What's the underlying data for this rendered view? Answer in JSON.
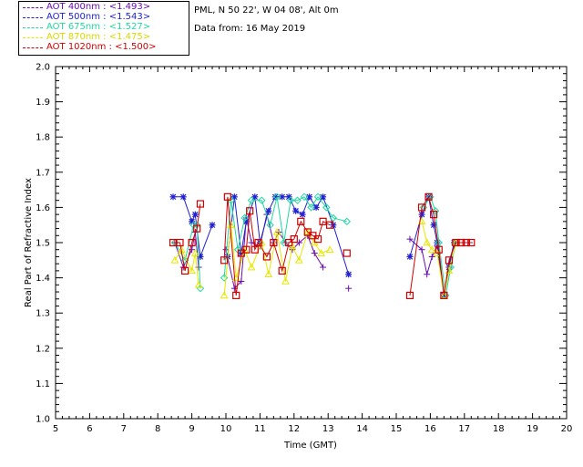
{
  "legend": [
    {
      "label": "AOT  400nm : <1.493>",
      "color": "#6a0dad"
    },
    {
      "label": "AOT  500nm : <1.543>",
      "color": "#2020d0"
    },
    {
      "label": "AOT  675nm : <1.527>",
      "color": "#20d8a0"
    },
    {
      "label": "AOT  870nm : <1.475>",
      "color": "#e8e800"
    },
    {
      "label": "AOT 1020nm : <1.500>",
      "color": "#d00000"
    }
  ],
  "info": {
    "site": "PML, N 50 22', W 04 08', Alt 0m",
    "date": "Data from: 16 May 2019"
  },
  "chart_data": {
    "type": "line",
    "xlabel": "Time (GMT)",
    "ylabel": "Real Part of Refractive Index",
    "xlim": [
      5,
      20
    ],
    "ylim": [
      1.0,
      2.0
    ],
    "xticks": [
      "5",
      "6",
      "7",
      "8",
      "9",
      "10",
      "11",
      "12",
      "13",
      "14",
      "15",
      "16",
      "17",
      "18",
      "19",
      "20"
    ],
    "yticks": [
      "1.0",
      "1.1",
      "1.2",
      "1.3",
      "1.4",
      "1.5",
      "1.6",
      "1.7",
      "1.8",
      "1.9",
      "2.0"
    ],
    "grid": false,
    "legend_position": "top-left outside",
    "series": [
      {
        "name": "AOT  400nm",
        "color": "#6a0dad",
        "marker": "plus",
        "x": [
          8.5,
          8.75,
          9.0,
          9.1,
          9.2,
          10.0,
          10.25,
          10.45,
          10.6,
          10.75,
          11.0,
          11.2,
          11.4,
          11.55,
          11.75,
          11.95,
          12.15,
          12.4,
          12.6,
          12.85,
          13.6,
          15.4,
          15.75,
          15.9,
          16.05,
          16.2,
          16.4,
          16.55,
          16.7,
          16.85,
          17.0,
          17.15
        ],
        "y": [
          1.5,
          1.43,
          1.48,
          1.53,
          1.43,
          1.48,
          1.37,
          1.39,
          1.57,
          1.5,
          1.49,
          1.58,
          1.5,
          1.53,
          1.5,
          1.48,
          1.5,
          1.52,
          1.47,
          1.43,
          1.37,
          1.51,
          1.48,
          1.41,
          1.46,
          1.49,
          1.35,
          1.44,
          1.5,
          1.5,
          1.5,
          1.5
        ]
      },
      {
        "name": "AOT  500nm",
        "color": "#2020d0",
        "marker": "asterisk",
        "x": [
          8.45,
          8.75,
          9.0,
          9.1,
          9.25,
          9.6,
          10.05,
          10.25,
          10.45,
          10.6,
          10.85,
          11.0,
          11.25,
          11.45,
          11.65,
          11.85,
          12.05,
          12.25,
          12.45,
          12.65,
          12.85,
          13.15,
          13.6,
          15.4,
          15.75,
          15.95,
          16.1,
          16.2,
          16.4,
          16.55,
          16.7
        ],
        "y": [
          1.63,
          1.63,
          1.56,
          1.58,
          1.46,
          1.55,
          1.46,
          1.63,
          1.47,
          1.56,
          1.63,
          1.5,
          1.59,
          1.63,
          1.63,
          1.63,
          1.59,
          1.58,
          1.63,
          1.6,
          1.63,
          1.55,
          1.41,
          1.46,
          1.58,
          1.63,
          1.55,
          1.5,
          1.35,
          1.43,
          1.5
        ]
      },
      {
        "name": "AOT  675nm",
        "color": "#20d8a0",
        "marker": "diamond",
        "x": [
          8.5,
          8.8,
          9.05,
          9.15,
          9.25,
          9.95,
          10.15,
          10.35,
          10.55,
          10.75,
          11.05,
          11.3,
          11.5,
          11.7,
          11.9,
          12.1,
          12.3,
          12.5,
          12.7,
          12.95,
          13.15,
          13.55,
          15.8,
          16.0,
          16.15,
          16.25,
          16.45,
          16.6,
          16.75
        ],
        "y": [
          1.5,
          1.45,
          1.55,
          1.55,
          1.37,
          1.4,
          1.62,
          1.48,
          1.57,
          1.62,
          1.62,
          1.55,
          1.63,
          1.5,
          1.62,
          1.62,
          1.63,
          1.6,
          1.63,
          1.6,
          1.57,
          1.56,
          1.6,
          1.63,
          1.59,
          1.5,
          1.35,
          1.43,
          1.5
        ]
      },
      {
        "name": "AOT  870nm",
        "color": "#e8e800",
        "marker": "triangle",
        "x": [
          8.5,
          8.7,
          9.0,
          9.1,
          9.2,
          9.95,
          10.15,
          10.3,
          10.55,
          10.75,
          11.05,
          11.25,
          11.5,
          11.75,
          11.95,
          12.15,
          12.4,
          12.6,
          12.8,
          13.05,
          15.75,
          15.9,
          16.05,
          16.2,
          16.4,
          16.55,
          16.75
        ],
        "y": [
          1.45,
          1.48,
          1.42,
          1.47,
          1.38,
          1.35,
          1.55,
          1.4,
          1.48,
          1.43,
          1.5,
          1.41,
          1.53,
          1.39,
          1.49,
          1.45,
          1.53,
          1.5,
          1.47,
          1.48,
          1.56,
          1.5,
          1.48,
          1.47,
          1.35,
          1.42,
          1.5
        ]
      },
      {
        "name": "AOT 1020nm",
        "color": "#d00000",
        "marker": "square",
        "x": [
          8.45,
          8.65,
          8.8,
          9.0,
          9.15,
          9.25,
          9.95,
          10.05,
          10.3,
          10.45,
          10.6,
          10.7,
          10.85,
          10.95,
          11.2,
          11.4,
          11.65,
          11.85,
          12.0,
          12.2,
          12.4,
          12.55,
          12.7,
          12.85,
          13.05,
          13.55,
          15.4,
          15.75,
          15.95,
          16.1,
          16.25,
          16.4,
          16.55,
          16.75,
          16.9,
          17.05,
          17.2
        ],
        "y": [
          1.5,
          1.5,
          1.42,
          1.5,
          1.54,
          1.61,
          1.45,
          1.63,
          1.35,
          1.47,
          1.48,
          1.59,
          1.48,
          1.5,
          1.46,
          1.5,
          1.42,
          1.5,
          1.51,
          1.56,
          1.53,
          1.52,
          1.51,
          1.56,
          1.55,
          1.47,
          1.35,
          1.6,
          1.63,
          1.58,
          1.48,
          1.35,
          1.45,
          1.5,
          1.5,
          1.5,
          1.5
        ]
      }
    ]
  }
}
